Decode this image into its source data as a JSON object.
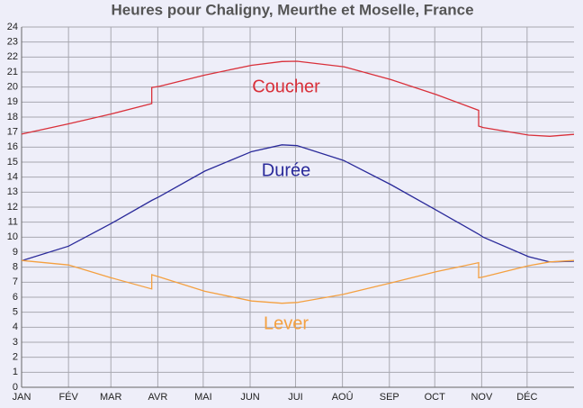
{
  "chart_data": {
    "type": "line",
    "title": "Heures pour Chaligny, Meurthe et Moselle, France",
    "x": [
      0,
      31,
      59,
      86,
      86,
      91,
      121,
      152,
      172,
      182,
      213,
      244,
      274,
      302,
      302,
      305,
      335,
      349,
      365
    ],
    "series": [
      {
        "name": "Coucher",
        "color": "#d9303a",
        "values": [
          16.87,
          17.55,
          18.2,
          18.9,
          19.97,
          20.05,
          20.8,
          21.45,
          21.7,
          21.72,
          21.35,
          20.5,
          19.5,
          18.45,
          17.4,
          17.3,
          16.8,
          16.72,
          16.85
        ]
      },
      {
        "name": "Durée",
        "color": "#2a2a9a",
        "values": [
          8.43,
          9.4,
          10.9,
          12.45,
          12.45,
          12.7,
          14.4,
          15.7,
          16.15,
          16.1,
          15.1,
          13.5,
          11.8,
          10.2,
          10.2,
          10.0,
          8.7,
          8.35,
          8.4
        ]
      },
      {
        "name": "Lever",
        "color": "#f4a040",
        "values": [
          8.45,
          8.15,
          7.3,
          6.55,
          7.5,
          7.35,
          6.4,
          5.75,
          5.6,
          5.65,
          6.2,
          6.95,
          7.7,
          8.3,
          7.3,
          7.35,
          8.1,
          8.35,
          8.45
        ]
      }
    ],
    "xlim": [
      0,
      365
    ],
    "xticks": [
      {
        "value": 0,
        "label": "JAN"
      },
      {
        "value": 31,
        "label": "FÉV"
      },
      {
        "value": 59,
        "label": "MAR"
      },
      {
        "value": 90,
        "label": "AVR"
      },
      {
        "value": 120,
        "label": "MAI"
      },
      {
        "value": 151,
        "label": "JUN"
      },
      {
        "value": 181,
        "label": "JUI"
      },
      {
        "value": 212,
        "label": "AOÛ"
      },
      {
        "value": 243,
        "label": "SEP"
      },
      {
        "value": 273,
        "label": "OCT"
      },
      {
        "value": 304,
        "label": "NOV"
      },
      {
        "value": 334,
        "label": "DÉC"
      }
    ],
    "ylim": [
      0,
      24
    ],
    "yticks": [
      0,
      1,
      2,
      3,
      4,
      5,
      6,
      7,
      8,
      9,
      10,
      11,
      12,
      13,
      14,
      15,
      16,
      17,
      18,
      19,
      20,
      21,
      22,
      23,
      24
    ],
    "grid": true
  }
}
